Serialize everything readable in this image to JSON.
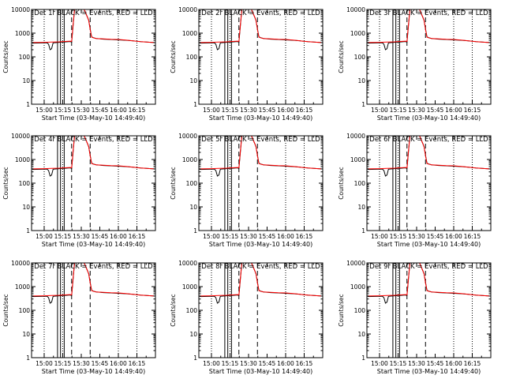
{
  "figure": {
    "panels": [
      {
        "title": "Det 1r BLACK = Events, RED = LLD",
        "xlabel": "Start Time (03-May-10 14:49:40)",
        "ylabel": "Counts/sec"
      },
      {
        "title": "Det 2r BLACK = Events, RED = LLD",
        "xlabel": "Start Time (03-May-10 14:49:40)",
        "ylabel": "Counts/sec"
      },
      {
        "title": "Det 3r BLACK = Events, RED = LLD",
        "xlabel": "Start Time (03-May-10 14:49:40)",
        "ylabel": "Counts/sec"
      },
      {
        "title": "Det 4r BLACK = Events, RED = LLD",
        "xlabel": "Start Time (03-May-10 14:49:40)",
        "ylabel": "Counts/sec"
      },
      {
        "title": "Det 5r BLACK = Events, RED = LLD",
        "xlabel": "Start Time (03-May-10 14:49:40)",
        "ylabel": "Counts/sec"
      },
      {
        "title": "Det 6r BLACK = Events, RED = LLD",
        "xlabel": "Start Time (03-May-10 14:49:40)",
        "ylabel": "Counts/sec"
      },
      {
        "title": "Det 7r BLACK = Events, RED = LLD",
        "xlabel": "Start Time (03-May-10 14:49:40)",
        "ylabel": "Counts/sec"
      },
      {
        "title": "Det 8r BLACK = Events, RED = LLD",
        "xlabel": "Start Time (03-May-10 14:49:40)",
        "ylabel": "Counts/sec"
      },
      {
        "title": "Det 9r BLACK = Events, RED = LLD",
        "xlabel": "Start Time (03-May-10 14:49:40)",
        "ylabel": "Counts/sec"
      }
    ]
  },
  "chart_data": {
    "type": "line",
    "scale": "log",
    "xlim": [
      14.83,
      16.5
    ],
    "ylim": [
      1,
      10000
    ],
    "x_ticks": [
      15.0,
      15.25,
      15.5,
      15.75,
      16.0,
      16.25
    ],
    "x_tick_labels": [
      "15:00",
      "15:15",
      "15:30",
      "15:45",
      "16:00",
      "16:15"
    ],
    "y_ticks": [
      1,
      10,
      100,
      1000,
      10000
    ],
    "y_tick_labels": [
      "1",
      "10",
      "100",
      "1000",
      "10000"
    ],
    "colors": {
      "events": "#000000",
      "lld": "#ff0000"
    },
    "markers": {
      "dotted": [
        15.0,
        15.25,
        16.0,
        16.25
      ],
      "solid": [
        15.18,
        15.22,
        15.27
      ],
      "dashed": [
        15.37,
        15.62
      ]
    },
    "series": [
      {
        "name": "Events",
        "color": "#000000",
        "x": [
          14.84,
          15.0,
          15.04,
          15.06,
          15.08,
          15.1,
          15.12,
          15.2,
          15.3,
          15.33,
          15.35,
          15.37,
          15.39,
          15.41,
          15.43,
          15.46,
          15.5,
          15.54,
          15.58,
          15.6,
          15.62,
          15.64,
          15.66,
          15.7,
          15.8,
          15.9,
          16.0,
          16.1,
          16.2,
          16.3,
          16.48
        ],
        "y": [
          380,
          390,
          395,
          340,
          200,
          220,
          390,
          410,
          430,
          440,
          440,
          420,
          2000,
          10000,
          10000,
          10000,
          10000,
          10000,
          5000,
          3500,
          1500,
          700,
          650,
          600,
          560,
          540,
          520,
          500,
          470,
          440,
          400
        ]
      },
      {
        "name": "LLD",
        "color": "#ff0000",
        "x": [
          14.84,
          15.0,
          15.1,
          15.2,
          15.3,
          15.35,
          15.37,
          15.39,
          15.41,
          15.43,
          15.46,
          15.5,
          15.54,
          15.58,
          15.6,
          15.62,
          15.64,
          15.66,
          15.7,
          15.8,
          15.9,
          16.0,
          16.1,
          16.2,
          16.3,
          16.48
        ],
        "y": [
          400,
          410,
          420,
          430,
          450,
          460,
          450,
          2200,
          10000,
          10000,
          10000,
          10000,
          10000,
          5000,
          3500,
          1400,
          680,
          640,
          600,
          570,
          550,
          540,
          510,
          470,
          440,
          400
        ]
      }
    ]
  }
}
